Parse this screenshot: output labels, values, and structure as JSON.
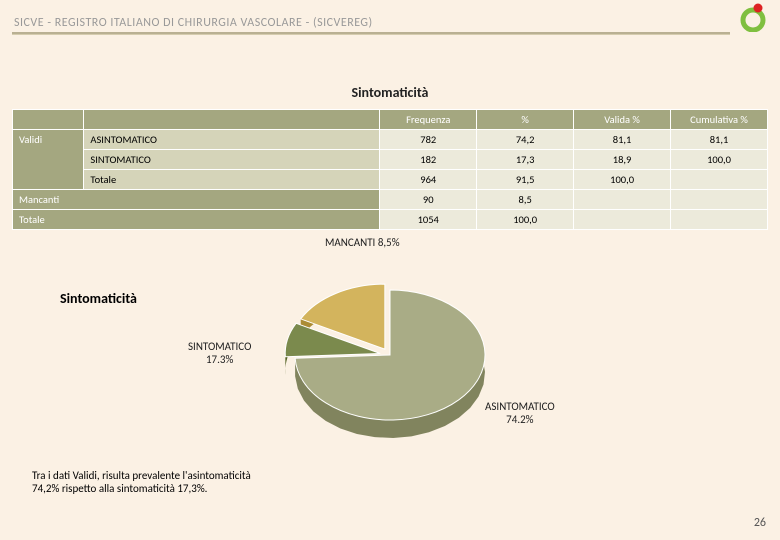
{
  "header": {
    "title": "SICVE - REGISTRO ITALIANO DI CHIRURGIA VASCOLARE -   (SICVEREG)"
  },
  "mainTitle": "Sintomaticità",
  "table": {
    "headers": {
      "c0": "",
      "c1": "",
      "c2": "Frequenza",
      "c3": "%",
      "c4": "Valida %",
      "c5": "Cumulativa %"
    },
    "group": "Validi",
    "rows": [
      {
        "cat": "ASINTOMATICO",
        "freq": "782",
        "pct": "74,2",
        "valid": "81,1",
        "cum": "81,1"
      },
      {
        "cat": "SINTOMATICO",
        "freq": "182",
        "pct": "17,3",
        "valid": "18,9",
        "cum": "100,0"
      },
      {
        "cat": "Totale",
        "freq": "964",
        "pct": "91,5",
        "valid": "100,0",
        "cum": ""
      }
    ],
    "mancanti": {
      "label": "Mancanti",
      "freq": "90",
      "pct": "8,5"
    },
    "totale": {
      "label": "Totale",
      "freq": "1054",
      "pct": "100,0"
    }
  },
  "chart": {
    "title": "Sintomaticità",
    "labels": {
      "mancanti": "MANCANTI 8,5%",
      "sintomatico_l1": "SINTOMATICO",
      "sintomatico_l2": "17.3%",
      "asintomatico_l1": "ASINTOMATICO",
      "asintomatico_l2": "74.2%"
    },
    "slices": {
      "asintomatico": {
        "value": 74.2,
        "color": "#a9ac86"
      },
      "sintomatico": {
        "value": 17.3,
        "color": "#d3b45d"
      },
      "mancanti": {
        "value": 8.5,
        "color": "#7b8a4d"
      }
    }
  },
  "footnote": "Tra i dati Validi, risulta prevalente l'asintomaticità 74,2% rispetto alla sintomaticità 17,3%.",
  "pagenum": "26",
  "logo": {
    "ring": "#777777",
    "dot": "#d22"
  }
}
